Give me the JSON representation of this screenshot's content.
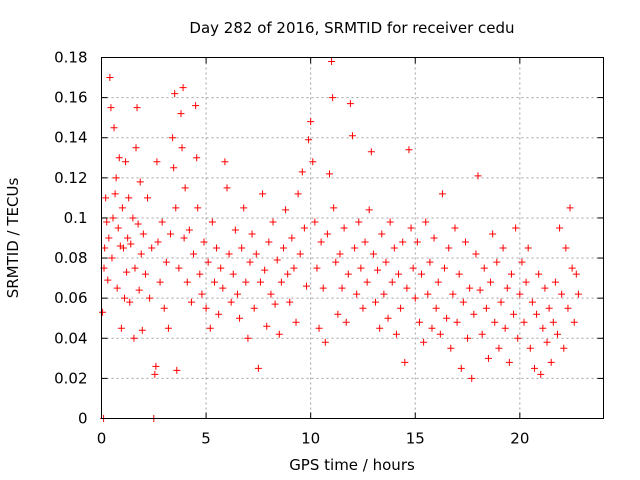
{
  "chart_data": {
    "type": "scatter",
    "title": "Day 282 of 2016, SRMTID for receiver cedu",
    "xlabel": "GPS time / hours",
    "ylabel": "SRMTID / TECUs",
    "xlim": [
      0,
      24
    ],
    "ylim": [
      0,
      0.18
    ],
    "x_ticks": [
      "0",
      "5",
      "10",
      "15",
      "20"
    ],
    "x_tick_values": [
      0,
      5,
      10,
      15,
      20
    ],
    "y_ticks": [
      "0",
      "0.02",
      "0.04",
      "0.06",
      "0.08",
      "0.1",
      "0.12",
      "0.14",
      "0.16",
      "0.18"
    ],
    "y_tick_values": [
      0,
      0.02,
      0.04,
      0.06,
      0.08,
      0.1,
      0.12,
      0.14,
      0.16,
      0.18
    ],
    "grid": true,
    "marker": "+",
    "color": "#ff0000",
    "series": [
      {
        "values": [
          [
            0.05,
            0.053
          ],
          [
            0.1,
            0.0
          ],
          [
            0.12,
            0.075
          ],
          [
            0.15,
            0.085
          ],
          [
            0.2,
            0.11
          ],
          [
            0.25,
            0.098
          ],
          [
            0.3,
            0.069
          ],
          [
            0.35,
            0.09
          ],
          [
            0.4,
            0.17
          ],
          [
            0.45,
            0.155
          ],
          [
            0.5,
            0.08
          ],
          [
            0.55,
            0.1
          ],
          [
            0.6,
            0.145
          ],
          [
            0.65,
            0.112
          ],
          [
            0.7,
            0.12
          ],
          [
            0.75,
            0.065
          ],
          [
            0.8,
            0.095
          ],
          [
            0.85,
            0.13
          ],
          [
            0.9,
            0.086
          ],
          [
            0.95,
            0.045
          ],
          [
            1.0,
            0.105
          ],
          [
            1.05,
            0.085
          ],
          [
            1.1,
            0.06
          ],
          [
            1.15,
            0.128
          ],
          [
            1.2,
            0.073
          ],
          [
            1.25,
            0.09
          ],
          [
            1.3,
            0.11
          ],
          [
            1.35,
            0.058
          ],
          [
            1.4,
            0.087
          ],
          [
            1.5,
            0.1
          ],
          [
            1.55,
            0.04
          ],
          [
            1.6,
            0.075
          ],
          [
            1.65,
            0.135
          ],
          [
            1.7,
            0.155
          ],
          [
            1.75,
            0.097
          ],
          [
            1.8,
            0.064
          ],
          [
            1.85,
            0.118
          ],
          [
            1.9,
            0.082
          ],
          [
            1.95,
            0.044
          ],
          [
            2.0,
            0.092
          ],
          [
            2.1,
            0.072
          ],
          [
            2.2,
            0.11
          ],
          [
            2.3,
            0.06
          ],
          [
            2.4,
            0.085
          ],
          [
            2.5,
            0.0
          ],
          [
            2.55,
            0.022
          ],
          [
            2.6,
            0.026
          ],
          [
            2.65,
            0.128
          ],
          [
            2.7,
            0.088
          ],
          [
            2.8,
            0.068
          ],
          [
            2.9,
            0.098
          ],
          [
            3.0,
            0.055
          ],
          [
            3.1,
            0.078
          ],
          [
            3.2,
            0.045
          ],
          [
            3.3,
            0.092
          ],
          [
            3.4,
            0.14
          ],
          [
            3.45,
            0.125
          ],
          [
            3.5,
            0.162
          ],
          [
            3.55,
            0.105
          ],
          [
            3.6,
            0.024
          ],
          [
            3.7,
            0.075
          ],
          [
            3.8,
            0.152
          ],
          [
            3.85,
            0.135
          ],
          [
            3.9,
            0.165
          ],
          [
            3.95,
            0.09
          ],
          [
            4.0,
            0.115
          ],
          [
            4.1,
            0.068
          ],
          [
            4.2,
            0.094
          ],
          [
            4.3,
            0.058
          ],
          [
            4.4,
            0.082
          ],
          [
            4.5,
            0.156
          ],
          [
            4.55,
            0.13
          ],
          [
            4.6,
            0.105
          ],
          [
            4.7,
            0.072
          ],
          [
            4.8,
            0.062
          ],
          [
            4.9,
            0.088
          ],
          [
            5.0,
            0.055
          ],
          [
            5.1,
            0.078
          ],
          [
            5.2,
            0.045
          ],
          [
            5.3,
            0.098
          ],
          [
            5.4,
            0.068
          ],
          [
            5.5,
            0.085
          ],
          [
            5.6,
            0.052
          ],
          [
            5.7,
            0.075
          ],
          [
            5.8,
            0.065
          ],
          [
            5.9,
            0.128
          ],
          [
            6.0,
            0.115
          ],
          [
            6.1,
            0.082
          ],
          [
            6.2,
            0.058
          ],
          [
            6.3,
            0.072
          ],
          [
            6.4,
            0.094
          ],
          [
            6.5,
            0.062
          ],
          [
            6.6,
            0.05
          ],
          [
            6.7,
            0.085
          ],
          [
            6.8,
            0.105
          ],
          [
            6.9,
            0.068
          ],
          [
            7.0,
            0.04
          ],
          [
            7.1,
            0.078
          ],
          [
            7.2,
            0.092
          ],
          [
            7.3,
            0.055
          ],
          [
            7.4,
            0.082
          ],
          [
            7.5,
            0.025
          ],
          [
            7.6,
            0.068
          ],
          [
            7.7,
            0.112
          ],
          [
            7.8,
            0.074
          ],
          [
            7.9,
            0.046
          ],
          [
            8.0,
            0.088
          ],
          [
            8.1,
            0.062
          ],
          [
            8.2,
            0.098
          ],
          [
            8.3,
            0.057
          ],
          [
            8.4,
            0.079
          ],
          [
            8.5,
            0.042
          ],
          [
            8.6,
            0.068
          ],
          [
            8.7,
            0.085
          ],
          [
            8.8,
            0.104
          ],
          [
            8.9,
            0.072
          ],
          [
            9.0,
            0.058
          ],
          [
            9.1,
            0.09
          ],
          [
            9.2,
            0.075
          ],
          [
            9.3,
            0.048
          ],
          [
            9.4,
            0.112
          ],
          [
            9.5,
            0.082
          ],
          [
            9.6,
            0.123
          ],
          [
            9.7,
            0.095
          ],
          [
            9.8,
            0.066
          ],
          [
            9.9,
            0.139
          ],
          [
            10.0,
            0.148
          ],
          [
            10.1,
            0.128
          ],
          [
            10.2,
            0.098
          ],
          [
            10.3,
            0.075
          ],
          [
            10.4,
            0.045
          ],
          [
            10.5,
            0.088
          ],
          [
            10.6,
            0.065
          ],
          [
            10.7,
            0.038
          ],
          [
            10.8,
            0.092
          ],
          [
            10.9,
            0.122
          ],
          [
            11.0,
            0.178
          ],
          [
            11.05,
            0.16
          ],
          [
            11.1,
            0.105
          ],
          [
            11.2,
            0.078
          ],
          [
            11.3,
            0.052
          ],
          [
            11.4,
            0.082
          ],
          [
            11.5,
            0.065
          ],
          [
            11.6,
            0.095
          ],
          [
            11.7,
            0.048
          ],
          [
            11.8,
            0.072
          ],
          [
            11.9,
            0.157
          ],
          [
            12.0,
            0.141
          ],
          [
            12.1,
            0.085
          ],
          [
            12.2,
            0.062
          ],
          [
            12.3,
            0.098
          ],
          [
            12.4,
            0.075
          ],
          [
            12.5,
            0.055
          ],
          [
            12.6,
            0.088
          ],
          [
            12.7,
            0.068
          ],
          [
            12.8,
            0.104
          ],
          [
            12.9,
            0.133
          ],
          [
            13.0,
            0.082
          ],
          [
            13.1,
            0.058
          ],
          [
            13.2,
            0.074
          ],
          [
            13.3,
            0.045
          ],
          [
            13.4,
            0.092
          ],
          [
            13.5,
            0.062
          ],
          [
            13.6,
            0.078
          ],
          [
            13.7,
            0.05
          ],
          [
            13.8,
            0.098
          ],
          [
            13.9,
            0.068
          ],
          [
            14.0,
            0.085
          ],
          [
            14.1,
            0.042
          ],
          [
            14.2,
            0.072
          ],
          [
            14.3,
            0.055
          ],
          [
            14.4,
            0.088
          ],
          [
            14.5,
            0.028
          ],
          [
            14.6,
            0.065
          ],
          [
            14.7,
            0.134
          ],
          [
            14.8,
            0.095
          ],
          [
            14.9,
            0.075
          ],
          [
            15.0,
            0.06
          ],
          [
            15.1,
            0.088
          ],
          [
            15.2,
            0.048
          ],
          [
            15.3,
            0.072
          ],
          [
            15.4,
            0.038
          ],
          [
            15.5,
            0.098
          ],
          [
            15.6,
            0.062
          ],
          [
            15.7,
            0.078
          ],
          [
            15.8,
            0.045
          ],
          [
            15.9,
            0.09
          ],
          [
            16.0,
            0.055
          ],
          [
            16.1,
            0.068
          ],
          [
            16.2,
            0.042
          ],
          [
            16.3,
            0.112
          ],
          [
            16.4,
            0.075
          ],
          [
            16.5,
            0.05
          ],
          [
            16.6,
            0.085
          ],
          [
            16.7,
            0.035
          ],
          [
            16.8,
            0.062
          ],
          [
            16.9,
            0.095
          ],
          [
            17.0,
            0.048
          ],
          [
            17.1,
            0.072
          ],
          [
            17.2,
            0.025
          ],
          [
            17.3,
            0.058
          ],
          [
            17.4,
            0.088
          ],
          [
            17.5,
            0.04
          ],
          [
            17.6,
            0.065
          ],
          [
            17.7,
            0.02
          ],
          [
            17.8,
            0.052
          ],
          [
            17.9,
            0.082
          ],
          [
            18.0,
            0.121
          ],
          [
            18.1,
            0.064
          ],
          [
            18.2,
            0.042
          ],
          [
            18.3,
            0.075
          ],
          [
            18.4,
            0.055
          ],
          [
            18.5,
            0.03
          ],
          [
            18.6,
            0.068
          ],
          [
            18.7,
            0.092
          ],
          [
            18.8,
            0.048
          ],
          [
            18.9,
            0.078
          ],
          [
            19.0,
            0.035
          ],
          [
            19.1,
            0.058
          ],
          [
            19.2,
            0.085
          ],
          [
            19.3,
            0.045
          ],
          [
            19.4,
            0.065
          ],
          [
            19.5,
            0.028
          ],
          [
            19.6,
            0.072
          ],
          [
            19.7,
            0.052
          ],
          [
            19.8,
            0.095
          ],
          [
            19.9,
            0.04
          ],
          [
            20.0,
            0.062
          ],
          [
            20.1,
            0.078
          ],
          [
            20.2,
            0.048
          ],
          [
            20.3,
            0.068
          ],
          [
            20.4,
            0.085
          ],
          [
            20.5,
            0.035
          ],
          [
            20.6,
            0.058
          ],
          [
            20.7,
            0.025
          ],
          [
            20.8,
            0.052
          ],
          [
            20.9,
            0.072
          ],
          [
            21.0,
            0.022
          ],
          [
            21.1,
            0.045
          ],
          [
            21.2,
            0.065
          ],
          [
            21.3,
            0.038
          ],
          [
            21.4,
            0.055
          ],
          [
            21.5,
            0.028
          ],
          [
            21.6,
            0.048
          ],
          [
            21.7,
            0.068
          ],
          [
            21.8,
            0.042
          ],
          [
            21.9,
            0.095
          ],
          [
            22.0,
            0.062
          ],
          [
            22.1,
            0.035
          ],
          [
            22.2,
            0.085
          ],
          [
            22.3,
            0.055
          ],
          [
            22.4,
            0.105
          ],
          [
            22.5,
            0.075
          ],
          [
            22.6,
            0.048
          ],
          [
            22.7,
            0.072
          ],
          [
            22.8,
            0.062
          ]
        ]
      }
    ]
  }
}
